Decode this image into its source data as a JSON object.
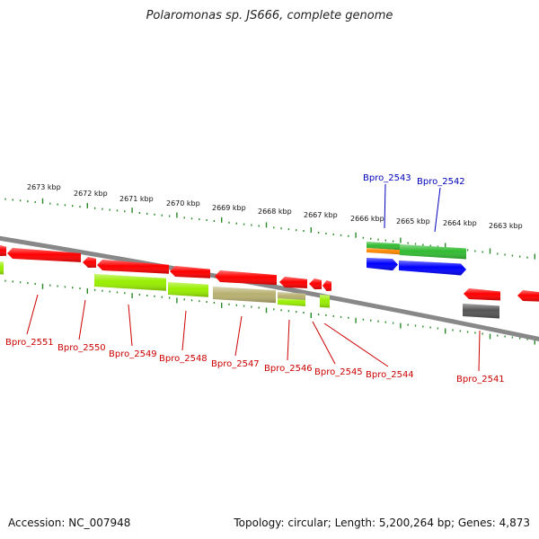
{
  "title": "Polaromonas sp. JS666, complete genome",
  "footer": {
    "accession": "Accession: NC_007948",
    "summary": "Topology: circular; Length: 5,200,264 bp; Genes: 4,873"
  },
  "colors": {
    "backbone": "#888888",
    "tick": "#2a8a2a",
    "label_red": "#cc0000",
    "label_blue": "#0000bb"
  },
  "scale": [
    {
      "text": "2673 kbp"
    },
    {
      "text": "2672 kbp"
    },
    {
      "text": "2671 kbp"
    },
    {
      "text": "2670 kbp"
    },
    {
      "text": "2669 kbp"
    },
    {
      "text": "2668 kbp"
    },
    {
      "text": "2667 kbp"
    },
    {
      "text": "2666 kbp"
    },
    {
      "text": "2665 kbp"
    },
    {
      "text": "2664 kbp"
    },
    {
      "text": "2663 kbp"
    }
  ],
  "gene_labels": [
    {
      "text": "Bpro_2551",
      "color": "#cc0000"
    },
    {
      "text": "Bpro_2550",
      "color": "#cc0000"
    },
    {
      "text": "Bpro_2549",
      "color": "#cc0000"
    },
    {
      "text": "Bpro_2548",
      "color": "#cc0000"
    },
    {
      "text": "Bpro_2547",
      "color": "#cc0000"
    },
    {
      "text": "Bpro_2546",
      "color": "#cc0000"
    },
    {
      "text": "Bpro_2545",
      "color": "#cc0000"
    },
    {
      "text": "Bpro_2544",
      "color": "#cc0000"
    },
    {
      "text": "Bpro_2541",
      "color": "#cc0000"
    },
    {
      "text": "Bpro_2543",
      "color": "#0000bb"
    },
    {
      "text": "Bpro_2542",
      "color": "#0000bb"
    }
  ],
  "features": [
    {
      "name": "gene-2551",
      "color": "#ff0000"
    },
    {
      "name": "gene-2550",
      "color": "#ff0000"
    },
    {
      "name": "gene-2549",
      "color": "#ff0000"
    },
    {
      "name": "gene-2548",
      "color": "#ff0000"
    },
    {
      "name": "gene-2547",
      "color": "#ff0000"
    },
    {
      "name": "gene-2546",
      "color": "#ff0000"
    },
    {
      "name": "gene-2545",
      "color": "#ff0000"
    },
    {
      "name": "gene-2544",
      "color": "#ff0000"
    },
    {
      "name": "gene-2541",
      "color": "#ff0000"
    },
    {
      "name": "gene-left-edge",
      "color": "#ff0000"
    },
    {
      "name": "gene-right-edge",
      "color": "#ff0000"
    },
    {
      "name": "gene-2543",
      "color": "#0000ff"
    },
    {
      "name": "gene-2542",
      "color": "#0000ff"
    },
    {
      "name": "cog-green-2543",
      "color": "#33bb33"
    },
    {
      "name": "cog-orange-2543",
      "color": "#ff8800"
    },
    {
      "name": "cog-green-2542",
      "color": "#33bb33"
    },
    {
      "name": "cog-lime-left",
      "color": "#99ee00"
    },
    {
      "name": "cog-lime-2549",
      "color": "#99ee00"
    },
    {
      "name": "cog-lime-2548",
      "color": "#99ee00"
    },
    {
      "name": "cog-olive-2547",
      "color": "#b8b070"
    },
    {
      "name": "cog-olive-2546",
      "color": "#b8b070"
    },
    {
      "name": "cog-lime-2546",
      "color": "#99ee00"
    },
    {
      "name": "cog-lime-2544",
      "color": "#99ee00"
    },
    {
      "name": "cog-gray-2541",
      "color": "#555555"
    }
  ]
}
